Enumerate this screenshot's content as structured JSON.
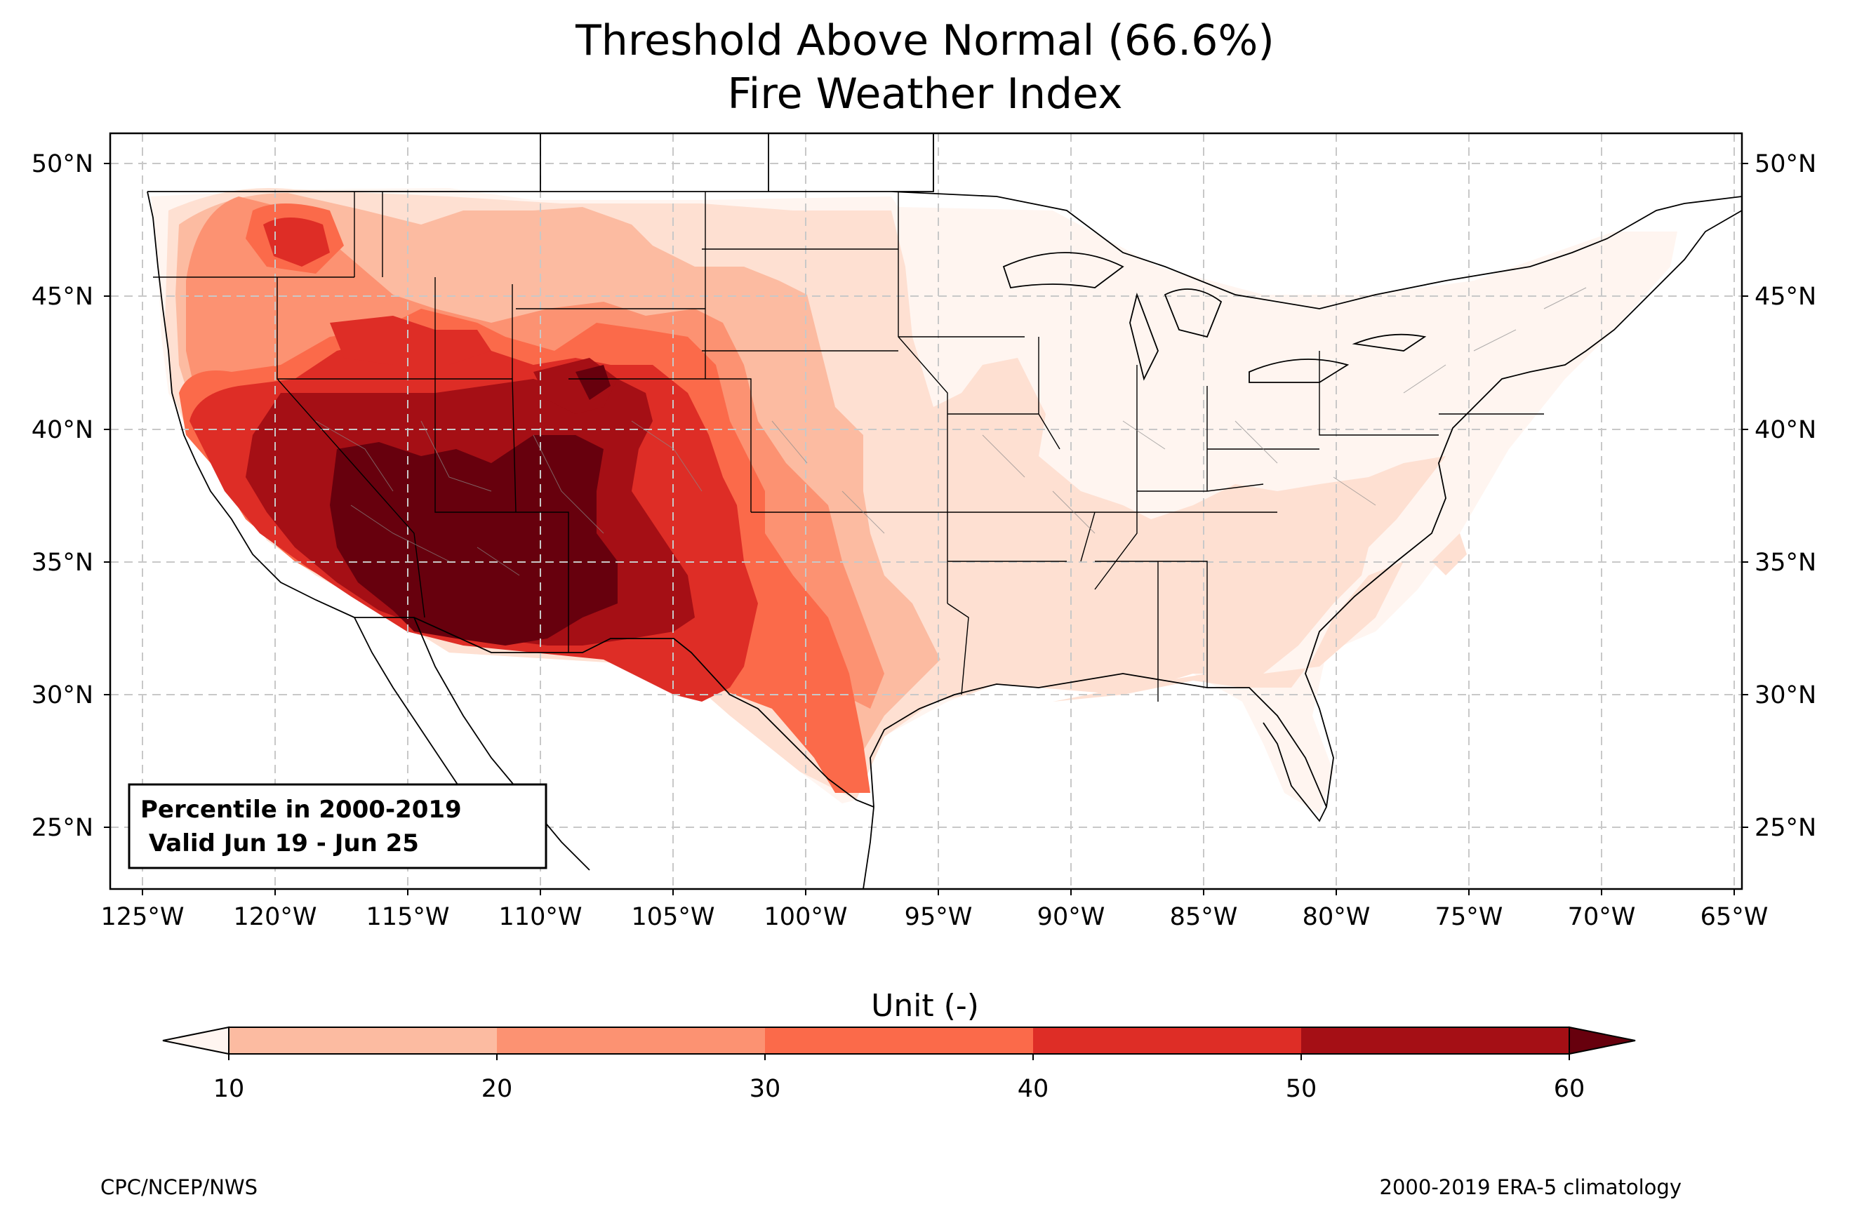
{
  "title": {
    "line1": "Threshold Above Normal (66.6%)",
    "line2": "Fire Weather Index"
  },
  "legend_box": {
    "line1": "Percentile in 2000-2019",
    "line2": " Valid Jun 19 - Jun 25"
  },
  "lat_labels": [
    "50°N",
    "45°N",
    "40°N",
    "35°N",
    "30°N",
    "25°N"
  ],
  "lon_labels": [
    "125°W",
    "120°W",
    "115°W",
    "110°W",
    "105°W",
    "100°W",
    "95°W",
    "90°W",
    "85°W",
    "80°W",
    "75°W",
    "70°W",
    "65°W"
  ],
  "colorbar": {
    "title": "Unit (-)",
    "ticks": [
      "10",
      "20",
      "30",
      "40",
      "50",
      "60"
    ],
    "colors": [
      "#fee0d2",
      "#fcbba1",
      "#fc9272",
      "#fb6a4a",
      "#de2d26",
      "#a50f15",
      "#67000d"
    ]
  },
  "footer": {
    "left": "CPC/NCEP/NWS",
    "right": "2000-2019 ERA-5 climatology"
  },
  "map_data": {
    "projection": "PlateCarree",
    "lon_range": [
      -126.3,
      -64.8
    ],
    "lat_range": [
      22.8,
      51.3
    ],
    "levels": [
      10,
      20,
      30,
      40,
      50,
      60
    ],
    "extend": "both"
  }
}
